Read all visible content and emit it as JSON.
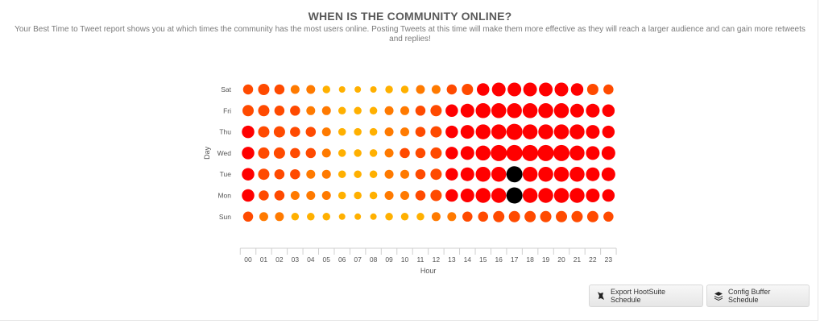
{
  "header": {
    "title": "WHEN IS THE COMMUNITY ONLINE?",
    "subtitle_line1": "Your Best Time to Tweet report shows you at which times the community has the most users online. Posting Tweets at this time will make them more effective as they will reach a larger audience and can gain more retweets",
    "subtitle_line2": "and replies!"
  },
  "buttons": {
    "hootsuite_label": "Export HootSuite Schedule",
    "hootsuite_icon": "owl-icon",
    "buffer_label": "Config Buffer Schedule",
    "buffer_icon": "layers-icon"
  },
  "chart_data": {
    "type": "scatter",
    "title": "",
    "xlabel": "Hour",
    "ylabel": "Day",
    "x_ticks": [
      "00",
      "01",
      "02",
      "03",
      "04",
      "05",
      "06",
      "07",
      "08",
      "09",
      "10",
      "11",
      "12",
      "13",
      "14",
      "15",
      "16",
      "17",
      "18",
      "19",
      "20",
      "21",
      "22",
      "23"
    ],
    "y_ticks": [
      "Sat",
      "Fri",
      "Thu",
      "Wed",
      "Tue",
      "Mon",
      "Sun"
    ],
    "value_scale": "relative community activity, 0-10",
    "highlight_color": "#000000",
    "color_scale": [
      "#ffb000",
      "#ff7a00",
      "#ff4a00",
      "#ff0000"
    ],
    "series": [
      {
        "day": "Sat",
        "values": [
          5,
          6,
          5,
          4,
          4,
          3,
          2,
          2,
          2,
          3,
          3,
          4,
          4,
          5,
          6,
          7,
          8,
          8,
          8,
          8,
          8,
          7,
          6,
          5
        ]
      },
      {
        "day": "Fri",
        "values": [
          6,
          6,
          5,
          5,
          4,
          4,
          3,
          3,
          3,
          4,
          4,
          5,
          6,
          7,
          8,
          9,
          9,
          9,
          9,
          9,
          9,
          8,
          8,
          7
        ]
      },
      {
        "day": "Thu",
        "values": [
          7,
          6,
          6,
          5,
          5,
          4,
          3,
          3,
          3,
          4,
          4,
          5,
          6,
          7,
          8,
          9,
          9,
          10,
          9,
          9,
          9,
          9,
          8,
          7
        ]
      },
      {
        "day": "Wed",
        "values": [
          7,
          6,
          6,
          5,
          5,
          4,
          3,
          3,
          3,
          4,
          5,
          5,
          6,
          7,
          8,
          9,
          10,
          10,
          10,
          10,
          10,
          9,
          8,
          8
        ]
      },
      {
        "day": "Tue",
        "values": [
          7,
          6,
          5,
          5,
          4,
          4,
          3,
          3,
          3,
          4,
          4,
          5,
          6,
          7,
          8,
          9,
          9,
          10,
          9,
          9,
          9,
          9,
          8,
          8
        ]
      },
      {
        "day": "Mon",
        "values": [
          7,
          5,
          5,
          4,
          4,
          4,
          3,
          3,
          3,
          4,
          4,
          5,
          6,
          7,
          8,
          9,
          9,
          10,
          9,
          9,
          9,
          9,
          8,
          7
        ]
      },
      {
        "day": "Sun",
        "values": [
          5,
          4,
          4,
          3,
          3,
          3,
          2,
          2,
          2,
          3,
          3,
          3,
          4,
          4,
          5,
          5,
          6,
          6,
          6,
          6,
          6,
          6,
          6,
          5
        ]
      }
    ],
    "highlighted": [
      {
        "day": "Tue",
        "hour": "17"
      },
      {
        "day": "Mon",
        "hour": "17"
      }
    ]
  }
}
